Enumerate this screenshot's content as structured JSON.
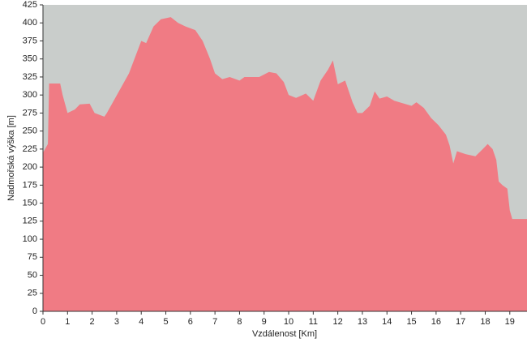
{
  "chart_data": {
    "type": "area",
    "xlabel": "Vzdálenost [Km]",
    "ylabel": "Nadmořská výška [m]",
    "background": "#c9cdcb",
    "color": "#f07b84",
    "xlim": [
      0,
      19.7
    ],
    "ylim": [
      0,
      425
    ],
    "xticks": [
      0,
      1,
      2,
      3,
      4,
      5,
      6,
      7,
      8,
      9,
      10,
      11,
      12,
      13,
      14,
      15,
      16,
      17,
      18,
      19
    ],
    "yticks": [
      0,
      25,
      50,
      75,
      100,
      125,
      150,
      175,
      200,
      225,
      250,
      275,
      300,
      325,
      350,
      375,
      400,
      425
    ],
    "x": [
      0,
      0.2,
      0.25,
      0.7,
      0.8,
      1.0,
      1.3,
      1.5,
      1.9,
      2.1,
      2.5,
      2.6,
      3.5,
      4.0,
      4.2,
      4.5,
      4.8,
      5.2,
      5.5,
      5.8,
      6.2,
      6.5,
      6.8,
      7.0,
      7.3,
      7.6,
      8.0,
      8.2,
      8.8,
      9.2,
      9.5,
      9.8,
      10.0,
      10.3,
      10.7,
      11.0,
      11.3,
      11.6,
      11.8,
      12.0,
      12.3,
      12.6,
      12.8,
      13.0,
      13.3,
      13.5,
      13.7,
      14.0,
      14.3,
      14.7,
      15.0,
      15.2,
      15.5,
      15.8,
      16.1,
      16.4,
      16.55,
      16.7,
      16.85,
      17.2,
      17.6,
      17.9,
      18.1,
      18.3,
      18.45,
      18.55,
      18.7,
      18.9,
      19.0,
      19.1,
      19.7
    ],
    "values": [
      220,
      232,
      316,
      316,
      300,
      275,
      280,
      287,
      288,
      275,
      270,
      275,
      330,
      375,
      372,
      395,
      405,
      408,
      400,
      395,
      390,
      375,
      350,
      330,
      322,
      325,
      320,
      325,
      325,
      332,
      330,
      318,
      300,
      296,
      302,
      292,
      320,
      335,
      348,
      315,
      320,
      290,
      275,
      275,
      285,
      305,
      295,
      298,
      292,
      288,
      285,
      290,
      282,
      268,
      258,
      245,
      230,
      205,
      222,
      218,
      215,
      225,
      232,
      225,
      210,
      180,
      175,
      170,
      140,
      128,
      128
    ]
  }
}
